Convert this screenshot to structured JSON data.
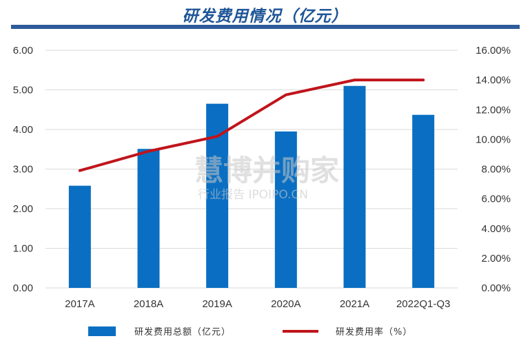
{
  "chart_data": {
    "type": "bar",
    "title": "研发费用情况（亿元）",
    "categories": [
      "2017A",
      "2018A",
      "2019A",
      "2020A",
      "2021A",
      "2022Q1-Q3"
    ],
    "series": [
      {
        "name": "研发费用总额（亿元）",
        "type": "bar",
        "axis": "left",
        "color": "#0a6fc2",
        "values": [
          2.58,
          3.51,
          4.65,
          3.95,
          5.1,
          4.37
        ]
      },
      {
        "name": "研发费用率（%）",
        "type": "line",
        "axis": "right",
        "color": "#c0141c",
        "values": [
          7.9,
          9.2,
          10.2,
          13.0,
          14.0,
          14.0
        ]
      }
    ],
    "y_left": {
      "ylim": [
        0,
        6
      ],
      "ticks": [
        "0.00",
        "1.00",
        "2.00",
        "3.00",
        "4.00",
        "5.00",
        "6.00"
      ]
    },
    "y_right": {
      "ylim": [
        0,
        16
      ],
      "ticks": [
        "0.00%",
        "2.00%",
        "4.00%",
        "6.00%",
        "8.00%",
        "10.00%",
        "12.00%",
        "14.00%",
        "16.00%"
      ]
    },
    "grid": true,
    "legend_position": "bottom"
  },
  "watermark": {
    "main": "慧博并购家",
    "sub": "行业报告 IPOIPO.CN"
  }
}
